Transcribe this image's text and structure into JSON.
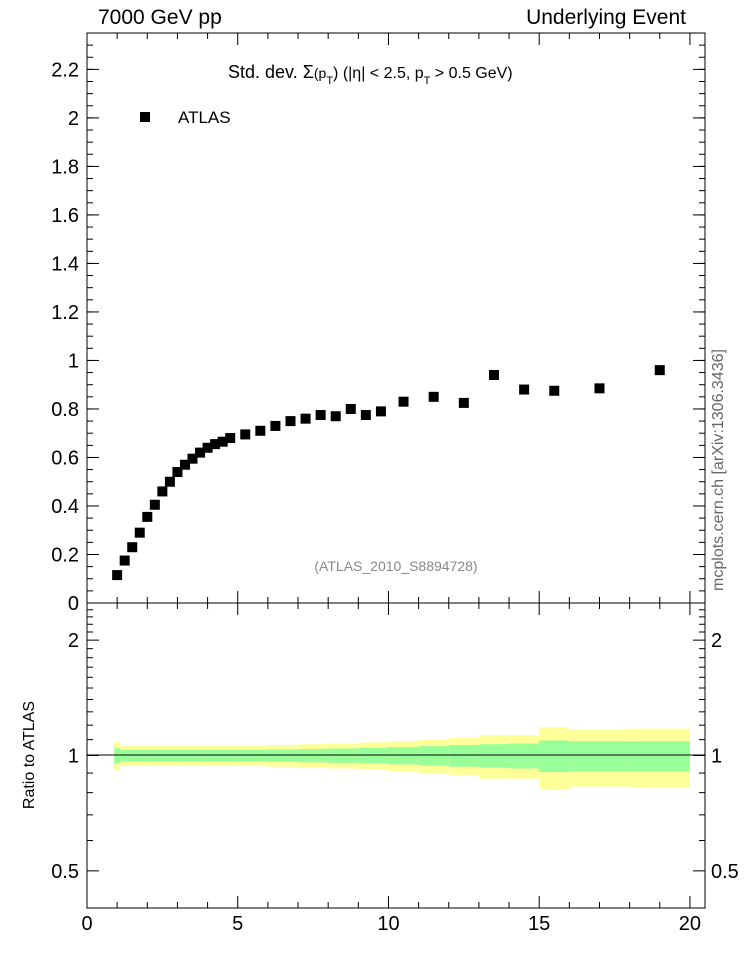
{
  "header": {
    "left": "7000 GeV pp",
    "right": "Underlying Event"
  },
  "plot_title": {
    "prefix": "Std. dev. ",
    "sigma": "Σ",
    "p": "(p",
    "sub_t": "T",
    "mid": ") (|η| < 2.5, p",
    "sub_t2": "T",
    "suffix": " > 0.5 GeV)"
  },
  "legend": {
    "label": "ATLAS"
  },
  "reference_label": "(ATLAS_2010_S8894728)",
  "side_label": "mcplots.cern.ch [arXiv:1306.3436]",
  "ratio_ylabel": "Ratio to ATLAS",
  "colors": {
    "marker": "#000000",
    "band_inner": "#99ff99",
    "band_outer": "#ffff99"
  },
  "chart_data": {
    "type": "scatter",
    "xlim": [
      0,
      20.5
    ],
    "main_ylim": [
      0,
      2.35
    ],
    "ratio_ylim": [
      0.4,
      2.5
    ],
    "main_yticks": [
      "0",
      "0.2",
      "0.4",
      "0.6",
      "0.8",
      "1",
      "1.2",
      "1.4",
      "1.6",
      "1.8",
      "2",
      "2.2"
    ],
    "xticks": [
      "0",
      "5",
      "10",
      "15",
      "20"
    ],
    "ratio_yticks": [
      "0.5",
      "1",
      "2"
    ],
    "series": [
      {
        "name": "ATLAS",
        "x": [
          1.0,
          1.25,
          1.5,
          1.75,
          2.0,
          2.25,
          2.5,
          2.75,
          3.0,
          3.25,
          3.5,
          3.75,
          4.0,
          4.25,
          4.5,
          4.75,
          5.25,
          5.75,
          6.25,
          6.75,
          7.25,
          7.75,
          8.25,
          8.75,
          9.25,
          9.75,
          10.5,
          11.5,
          12.5,
          13.5,
          14.5,
          15.5,
          17.0,
          19.0
        ],
        "y": [
          0.115,
          0.175,
          0.23,
          0.29,
          0.355,
          0.405,
          0.46,
          0.5,
          0.54,
          0.57,
          0.595,
          0.62,
          0.64,
          0.655,
          0.665,
          0.68,
          0.695,
          0.71,
          0.73,
          0.75,
          0.76,
          0.775,
          0.77,
          0.8,
          0.775,
          0.79,
          0.83,
          0.85,
          0.825,
          0.94,
          0.88,
          0.875,
          0.885,
          0.96
        ]
      }
    ],
    "ratio_bands": {
      "edges": [
        0.9,
        1.1,
        2,
        3,
        4,
        5,
        6,
        7,
        8,
        9,
        10,
        11,
        12,
        13,
        14,
        15,
        16,
        18,
        20
      ],
      "inner_low": [
        0.955,
        0.965,
        0.965,
        0.965,
        0.965,
        0.965,
        0.963,
        0.96,
        0.957,
        0.953,
        0.948,
        0.942,
        0.935,
        0.93,
        0.925,
        0.905,
        0.91,
        0.91
      ],
      "inner_high": [
        1.045,
        1.035,
        1.035,
        1.035,
        1.035,
        1.035,
        1.037,
        1.04,
        1.043,
        1.047,
        1.052,
        1.058,
        1.065,
        1.07,
        1.075,
        1.095,
        1.09,
        1.09
      ],
      "outer_low": [
        0.915,
        0.94,
        0.94,
        0.94,
        0.94,
        0.94,
        0.935,
        0.93,
        0.925,
        0.918,
        0.91,
        0.9,
        0.89,
        0.87,
        0.87,
        0.815,
        0.83,
        0.825
      ],
      "outer_high": [
        1.085,
        1.06,
        1.06,
        1.06,
        1.06,
        1.06,
        1.065,
        1.07,
        1.075,
        1.082,
        1.09,
        1.1,
        1.11,
        1.13,
        1.13,
        1.185,
        1.17,
        1.175
      ]
    }
  }
}
